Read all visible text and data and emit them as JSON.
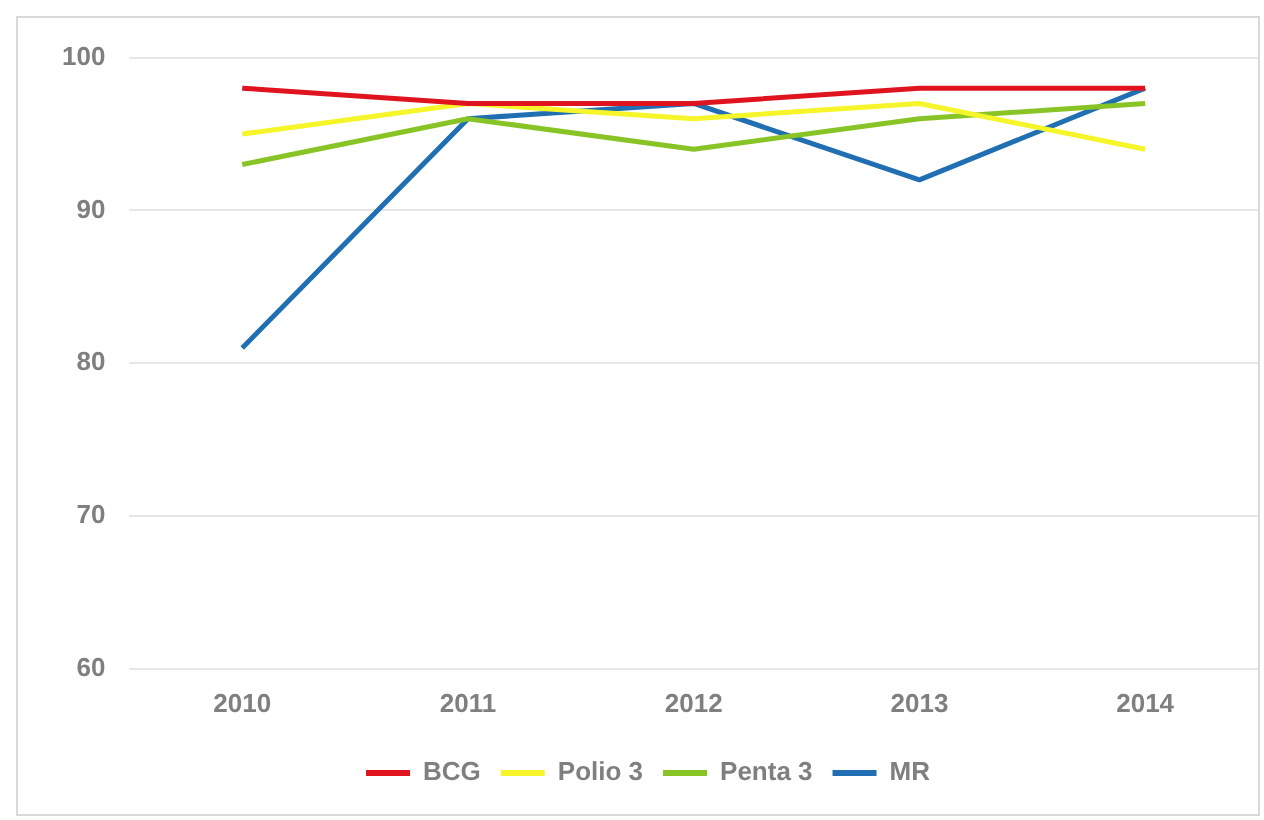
{
  "chart_data": {
    "type": "line",
    "categories": [
      "2010",
      "2011",
      "2012",
      "2013",
      "2014"
    ],
    "series": [
      {
        "name": "BCG",
        "color": "#e0141e",
        "values": [
          98,
          97,
          97,
          98,
          98
        ]
      },
      {
        "name": "Polio 3",
        "color": "#f5f52a",
        "values": [
          95,
          97,
          96,
          97,
          94
        ]
      },
      {
        "name": "Penta 3",
        "color": "#88c425",
        "values": [
          93,
          96,
          94,
          96,
          97
        ]
      },
      {
        "name": "MR",
        "color": "#1f6fb2",
        "values": [
          81,
          96,
          97,
          92,
          98
        ]
      }
    ],
    "ylim": [
      60,
      100
    ],
    "yticks": [
      60,
      70,
      80,
      90,
      100
    ],
    "grid": "y",
    "legend": "bottom",
    "marker": "none",
    "line_style": "solid"
  }
}
